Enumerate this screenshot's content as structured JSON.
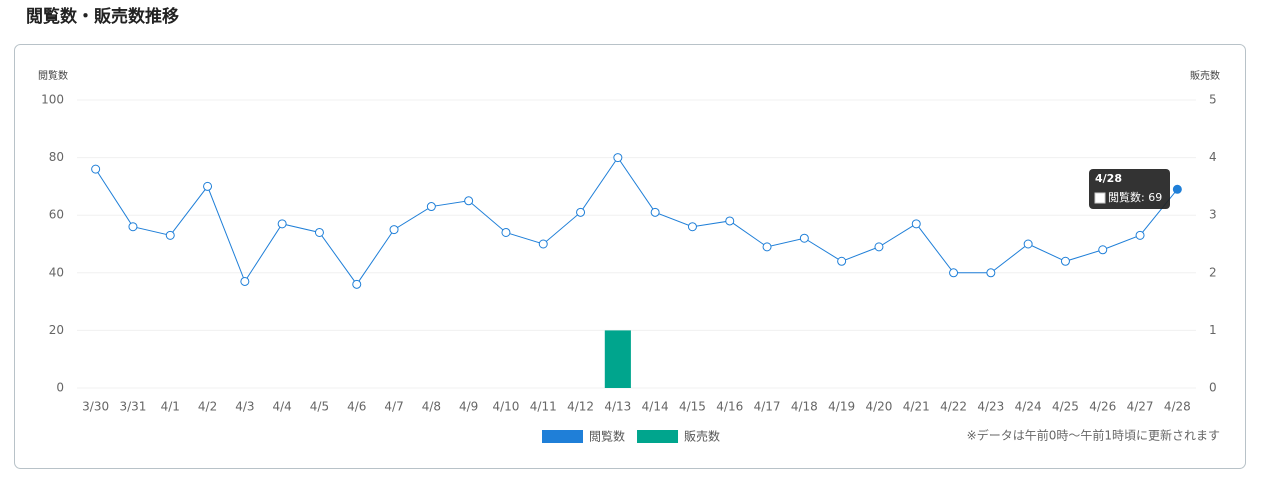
{
  "chart_data": {
    "type": "combo",
    "title": "閲覧数・販売数推移",
    "y_label": "閲覧数",
    "y2_label": "販売数",
    "categories": [
      "3/30",
      "3/31",
      "4/1",
      "4/2",
      "4/3",
      "4/4",
      "4/5",
      "4/6",
      "4/7",
      "4/8",
      "4/9",
      "4/10",
      "4/11",
      "4/12",
      "4/13",
      "4/14",
      "4/15",
      "4/16",
      "4/17",
      "4/18",
      "4/19",
      "4/20",
      "4/21",
      "4/22",
      "4/23",
      "4/24",
      "4/25",
      "4/26",
      "4/27",
      "4/28"
    ],
    "series": [
      {
        "name": "閲覧数",
        "type": "line",
        "color": "#1f7fd8",
        "values": [
          76,
          56,
          53,
          70,
          37,
          57,
          54,
          36,
          55,
          63,
          65,
          54,
          50,
          61,
          80,
          61,
          56,
          58,
          49,
          52,
          44,
          49,
          57,
          40,
          40,
          50,
          44,
          48,
          53,
          69
        ]
      },
      {
        "name": "販売数",
        "type": "bar",
        "axis": "y2",
        "color": "#00a58d",
        "values": [
          0,
          0,
          0,
          0,
          0,
          0,
          0,
          0,
          0,
          0,
          0,
          0,
          0,
          0,
          1,
          0,
          0,
          0,
          0,
          0,
          0,
          0,
          0,
          0,
          0,
          0,
          0,
          0,
          0,
          0
        ]
      }
    ],
    "ylim": [
      0,
      100
    ],
    "yticks": [
      0,
      20,
      40,
      60,
      80,
      100
    ],
    "y2lim": [
      0,
      5
    ],
    "y2ticks": [
      0,
      1,
      2,
      3,
      4,
      5
    ],
    "grid": true,
    "tooltip": {
      "title": "4/28",
      "text": "閲覧数: 69"
    },
    "note": "※データは午前0時〜午前1時頃に更新されます"
  }
}
